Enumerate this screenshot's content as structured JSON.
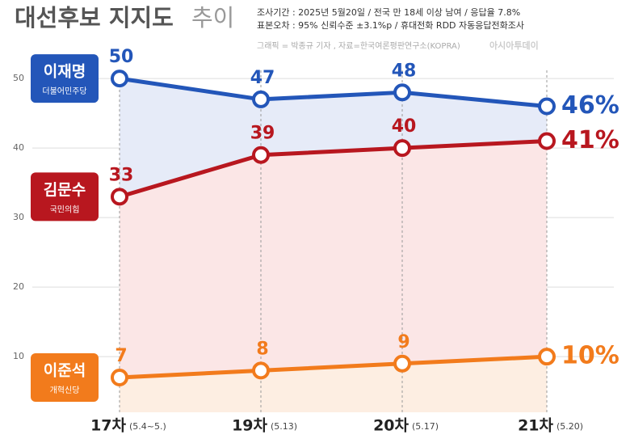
{
  "chart_data": {
    "type": "line",
    "title": "대선후보 지지도",
    "title_suffix": "추이",
    "notes": [
      "조사기간 : 2025년 5월20일 / 전국 만 18세 이상 남여 / 응답율 7.8%",
      "표본오차 : 95% 신뢰수준 ±3.1%p / 휴대전화 RDD 자동응답전화조사"
    ],
    "credit": "그래픽 = 박종규 기자 , 자료=한국여론평판연구소(KOPRA)",
    "logo": "아시아투데이",
    "categories": [
      "17차",
      "19차",
      "20차",
      "21차"
    ],
    "category_notes": [
      "(5.4~5.)",
      "(5.13)",
      "(5.17)",
      "(5.20)"
    ],
    "series": [
      {
        "name": "이재명",
        "party": "더불어민주당",
        "color": "#2356b9",
        "area_color": "#e6ebf8",
        "values": [
          50,
          47,
          48,
          46
        ],
        "value_labels": [
          "50",
          "47",
          "48",
          "46%"
        ]
      },
      {
        "name": "김문수",
        "party": "국민의힘",
        "color": "#b8171f",
        "area_color": "#fbe6e6",
        "values": [
          33,
          39,
          40,
          41
        ],
        "value_labels": [
          "33",
          "39",
          "40",
          "41%"
        ]
      },
      {
        "name": "이준석",
        "party": "개혁신당",
        "color": "#f27b1c",
        "area_color": "#fdeee2",
        "values": [
          7,
          8,
          9,
          10
        ],
        "value_labels": [
          "7",
          "8",
          "9",
          "10%"
        ]
      }
    ],
    "ylim": [
      2,
      53.5
    ],
    "yticks": [
      10,
      20,
      30,
      40,
      50
    ],
    "grid": true
  }
}
